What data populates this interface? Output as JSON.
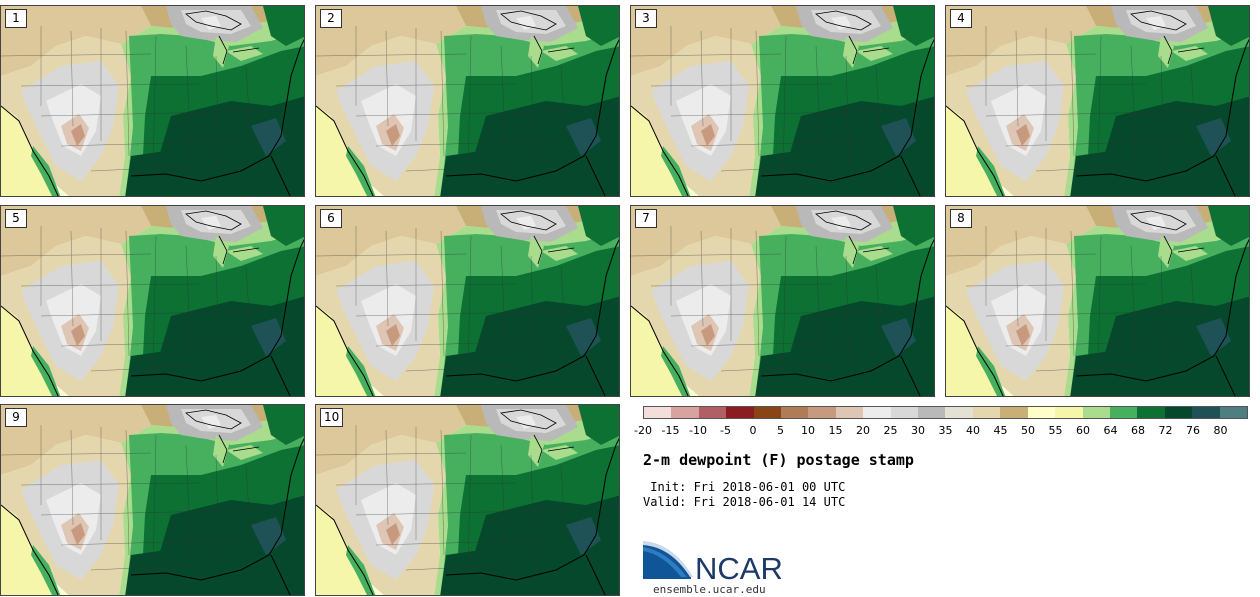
{
  "panels": [
    {
      "label": "1"
    },
    {
      "label": "2"
    },
    {
      "label": "3"
    },
    {
      "label": "4"
    },
    {
      "label": "5"
    },
    {
      "label": "6"
    },
    {
      "label": "7"
    },
    {
      "label": "8"
    },
    {
      "label": "9"
    },
    {
      "label": "10"
    }
  ],
  "colorbar": {
    "ticks": [
      "-20",
      "-15",
      "-10",
      "-5",
      "0",
      "5",
      "10",
      "15",
      "20",
      "25",
      "30",
      "35",
      "40",
      "45",
      "50",
      "55",
      "60",
      "64",
      "68",
      "72",
      "76",
      "80"
    ],
    "colors": [
      "#f3dedc",
      "#d7a2a0",
      "#b06064",
      "#8a1c22",
      "#8a4516",
      "#b07c57",
      "#c79a80",
      "#dfc6b4",
      "#ececec",
      "#d8d8d8",
      "#b9b9b9",
      "#e3e1d3",
      "#e4d7ae",
      "#c8af78",
      "#fefec8",
      "#f6f6aa",
      "#a9dc8d",
      "#46b05f",
      "#0c7133",
      "#06482b",
      "#1f5257",
      "#4f7e80"
    ]
  },
  "title": "2-m dewpoint (F) postage stamp",
  "init": " Init: Fri 2018-06-01 00 UTC",
  "valid": "Valid: Fri 2018-06-01 14 UTC",
  "logo": {
    "text": "NCAR",
    "url": "ensemble.ucar.edu",
    "colors": {
      "blue": "#0f5597",
      "swoosh": "#2e7cc1",
      "navy": "#1d3a66"
    }
  }
}
